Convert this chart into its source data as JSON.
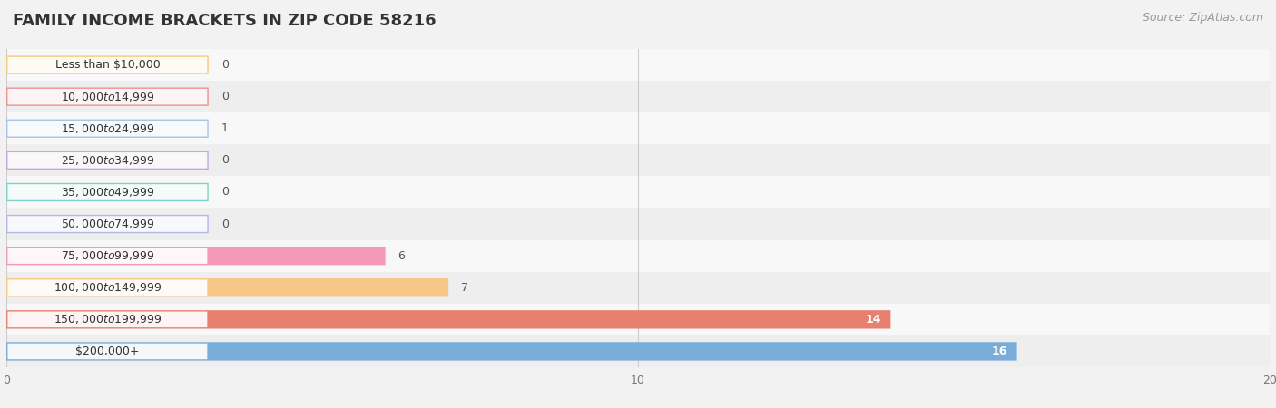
{
  "title": "FAMILY INCOME BRACKETS IN ZIP CODE 58216",
  "source": "Source: ZipAtlas.com",
  "categories": [
    "Less than $10,000",
    "$10,000 to $14,999",
    "$15,000 to $24,999",
    "$25,000 to $34,999",
    "$35,000 to $49,999",
    "$50,000 to $74,999",
    "$75,000 to $99,999",
    "$100,000 to $149,999",
    "$150,000 to $199,999",
    "$200,000+"
  ],
  "values": [
    0,
    0,
    1,
    0,
    0,
    0,
    6,
    7,
    14,
    16
  ],
  "bar_colors": [
    "#f5c97a",
    "#f09090",
    "#a8c4e0",
    "#c4a8d8",
    "#7dd4c4",
    "#b4b8e8",
    "#f599b8",
    "#f5c888",
    "#e88070",
    "#7aacd8"
  ],
  "xlim": [
    0,
    20
  ],
  "xticks": [
    0,
    10,
    20
  ],
  "background_color": "#f2f2f2",
  "row_bg_even": "#f8f8f8",
  "row_bg_odd": "#eeeeee",
  "title_fontsize": 13,
  "source_fontsize": 9,
  "label_fontsize": 9,
  "value_fontsize": 9,
  "bar_height": 0.58
}
